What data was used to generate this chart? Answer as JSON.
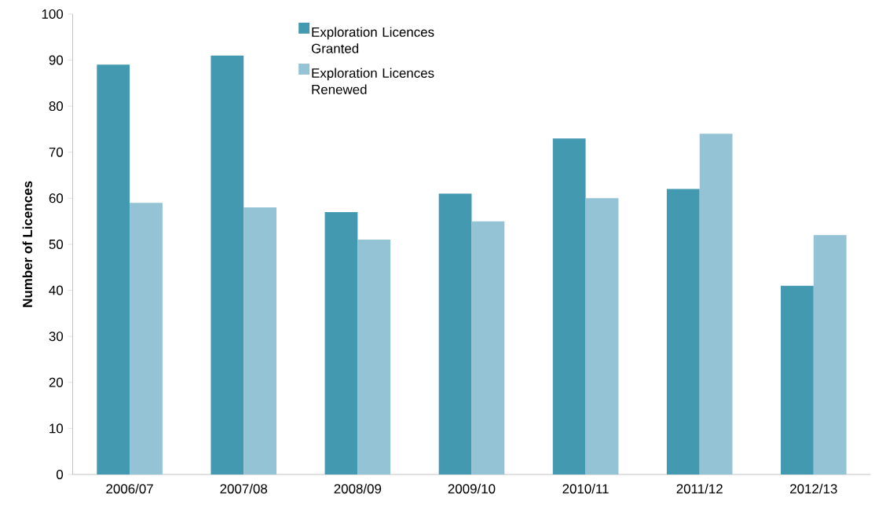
{
  "chart_data": {
    "type": "bar",
    "ylabel": "Number of Licences",
    "categories": [
      "2006/07",
      "2007/08",
      "2008/09",
      "2009/10",
      "2010/11",
      "2011/12",
      "2012/13"
    ],
    "series": [
      {
        "name": "Exploration Licences Granted",
        "color": "#4399b0",
        "values": [
          89,
          91,
          57,
          61,
          73,
          62,
          41
        ]
      },
      {
        "name": "Exploration Licences Renewed",
        "color": "#93c3d4",
        "values": [
          59,
          58,
          51,
          55,
          60,
          74,
          52
        ]
      }
    ],
    "ylim": [
      0,
      100
    ],
    "yticks": [
      0,
      10,
      20,
      30,
      40,
      50,
      60,
      70,
      80,
      90,
      100
    ],
    "grid": false,
    "legend": "top"
  }
}
